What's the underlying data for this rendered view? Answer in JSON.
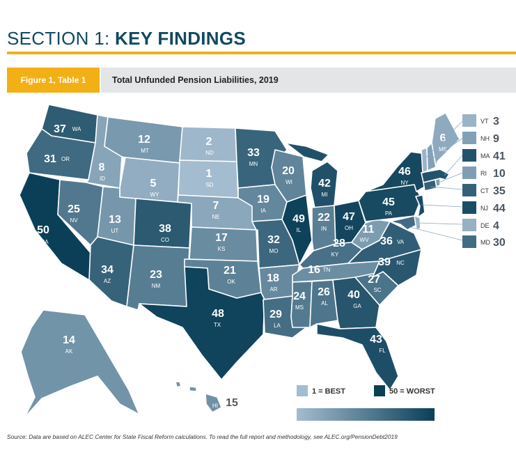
{
  "header": {
    "section_prefix": "SECTION 1:",
    "section_title": "KEY FINDINGS",
    "figure_tab": "Figure 1, Table 1",
    "figure_title": "Total Unfunded Pension Liabilities, 2019"
  },
  "colors": {
    "accent": "#f2b015",
    "title": "#0f4a62",
    "best": "#a4bccf",
    "worst": "#0b3f58"
  },
  "states": [
    {
      "abbr": "WA",
      "rank": 37
    },
    {
      "abbr": "OR",
      "rank": 31
    },
    {
      "abbr": "CA",
      "rank": 50
    },
    {
      "abbr": "ID",
      "rank": 8
    },
    {
      "abbr": "NV",
      "rank": 25
    },
    {
      "abbr": "MT",
      "rank": 12
    },
    {
      "abbr": "WY",
      "rank": 5
    },
    {
      "abbr": "UT",
      "rank": 13
    },
    {
      "abbr": "AZ",
      "rank": 34
    },
    {
      "abbr": "CO",
      "rank": 38
    },
    {
      "abbr": "NM",
      "rank": 23
    },
    {
      "abbr": "ND",
      "rank": 2
    },
    {
      "abbr": "SD",
      "rank": 1
    },
    {
      "abbr": "NE",
      "rank": 7
    },
    {
      "abbr": "KS",
      "rank": 17
    },
    {
      "abbr": "OK",
      "rank": 21
    },
    {
      "abbr": "TX",
      "rank": 48
    },
    {
      "abbr": "MN",
      "rank": 33
    },
    {
      "abbr": "IA",
      "rank": 19
    },
    {
      "abbr": "MO",
      "rank": 32
    },
    {
      "abbr": "AR",
      "rank": 18
    },
    {
      "abbr": "LA",
      "rank": 29
    },
    {
      "abbr": "WI",
      "rank": 20
    },
    {
      "abbr": "IL",
      "rank": 49
    },
    {
      "abbr": "MI",
      "rank": 42
    },
    {
      "abbr": "IN",
      "rank": 22
    },
    {
      "abbr": "OH",
      "rank": 47
    },
    {
      "abbr": "KY",
      "rank": 28
    },
    {
      "abbr": "TN",
      "rank": 16
    },
    {
      "abbr": "MS",
      "rank": 24
    },
    {
      "abbr": "AL",
      "rank": 26
    },
    {
      "abbr": "GA",
      "rank": 40
    },
    {
      "abbr": "FL",
      "rank": 43
    },
    {
      "abbr": "SC",
      "rank": 27
    },
    {
      "abbr": "NC",
      "rank": 39
    },
    {
      "abbr": "VA",
      "rank": 36
    },
    {
      "abbr": "WV",
      "rank": 11
    },
    {
      "abbr": "PA",
      "rank": 45
    },
    {
      "abbr": "NY",
      "rank": 46
    },
    {
      "abbr": "ME",
      "rank": 6
    },
    {
      "abbr": "AK",
      "rank": 14
    },
    {
      "abbr": "HI",
      "rank": 15
    }
  ],
  "small_states": [
    {
      "abbr": "VT",
      "rank": 3
    },
    {
      "abbr": "NH",
      "rank": 9
    },
    {
      "abbr": "MA",
      "rank": 41
    },
    {
      "abbr": "RI",
      "rank": 10
    },
    {
      "abbr": "CT",
      "rank": 35
    },
    {
      "abbr": "NJ",
      "rank": 44
    },
    {
      "abbr": "DE",
      "rank": 4
    },
    {
      "abbr": "MD",
      "rank": 30
    }
  ],
  "legend": {
    "best_label": "1 = BEST",
    "worst_label": "50 = WORST"
  },
  "footer": {
    "source": "Source: Data are based on ALEC Center for State Fiscal Reform calculations. To read the full report and methodology, see ALEC.org/PensionDebt2019"
  }
}
